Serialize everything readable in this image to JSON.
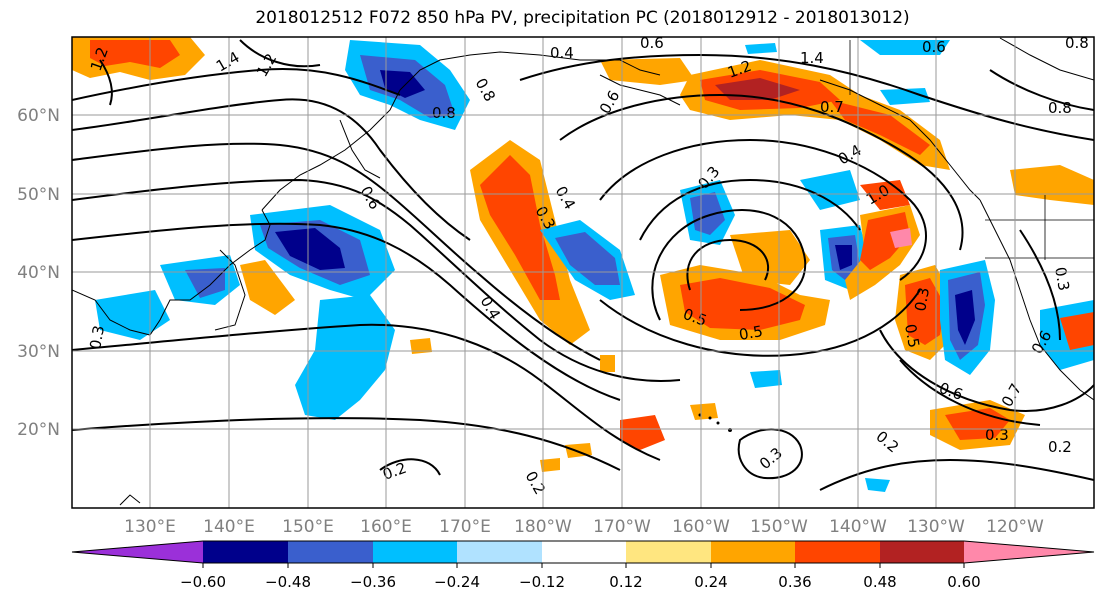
{
  "title": "2018012512 F072 850 hPa PV, precipitation PC (2018012912 - 2018013012)",
  "lat_labels": [
    "60°N",
    "50°N",
    "40°N",
    "30°N",
    "20°N"
  ],
  "lon_labels": [
    "130°E",
    "140°E",
    "150°E",
    "160°E",
    "170°E",
    "180°W",
    "170°W",
    "160°W",
    "150°W",
    "140°W",
    "130°W",
    "120°W"
  ],
  "colorbar": {
    "tick_labels": [
      "−0.60",
      "−0.48",
      "−0.36",
      "−0.24",
      "−0.12",
      "0.12",
      "0.24",
      "0.36",
      "0.48",
      "0.60"
    ],
    "colors": [
      "#9b30d9",
      "#00008b",
      "#3a5fcd",
      "#00bfff",
      "#b0e2ff",
      "#ffffff",
      "#ffe680",
      "#ffa500",
      "#ff4500",
      "#b22222",
      "#ff88aa"
    ]
  },
  "contour_labels": [
    "1.2",
    "1.4",
    "1.2",
    "0.4",
    "0.8",
    "0.6",
    "0.8",
    "1.4",
    "1.2",
    "0.6",
    "0.8",
    "0.8",
    "0.6",
    "0.6",
    "0.4",
    "0.3",
    "1.0",
    "0.7",
    "0.4",
    "0.3",
    "0.5",
    "0.5",
    "0.4",
    "0.2",
    "0.2",
    "0.2",
    "0.3",
    "0.6",
    "0.3",
    "0.7",
    "0.2",
    "0.3",
    "0.5",
    "0.3",
    "0.3",
    "0.6"
  ]
}
